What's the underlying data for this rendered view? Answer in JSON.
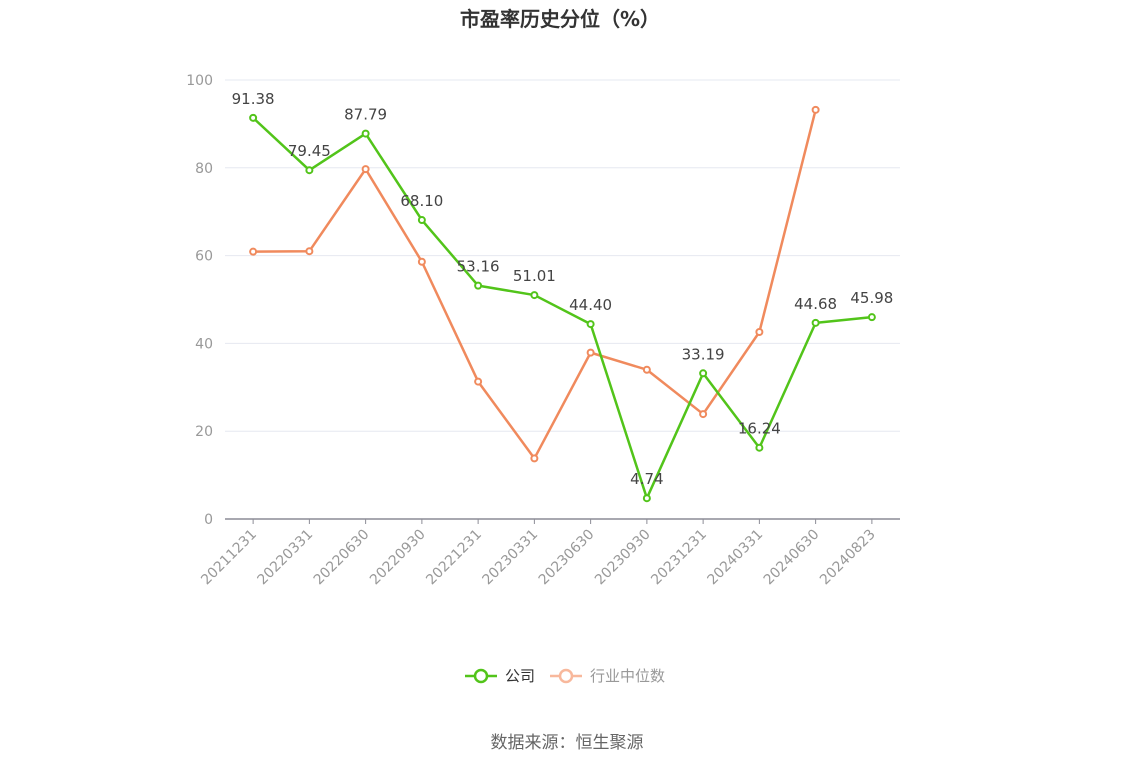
{
  "chart_data": {
    "type": "line",
    "title": "市盈率历史分位（%）",
    "categories": [
      "20211231",
      "20220331",
      "20220630",
      "20220930",
      "20221231",
      "20230331",
      "20230630",
      "20230930",
      "20231231",
      "20240331",
      "20240630",
      "20240823"
    ],
    "ylim": [
      0,
      100
    ],
    "yticks": [
      0,
      20,
      40,
      60,
      80,
      100
    ],
    "grid": true,
    "legend_position": "bottom",
    "series": [
      {
        "name": "公司",
        "color": "#52c41a",
        "values": [
          91.38,
          79.45,
          87.79,
          68.1,
          53.16,
          51.01,
          44.4,
          4.74,
          33.19,
          16.24,
          44.68,
          45.98
        ],
        "labels": [
          "91.38",
          "79.45",
          "87.79",
          "68.10",
          "53.16",
          "51.01",
          "44.40",
          "4.74",
          "33.19",
          "16.24",
          "44.68",
          "45.98"
        ]
      },
      {
        "name": "行业中位数",
        "color": "#f08a5d",
        "values": [
          60.9,
          61.0,
          79.7,
          58.6,
          31.3,
          13.8,
          37.9,
          34.0,
          23.9,
          42.6,
          93.2,
          null
        ]
      }
    ]
  },
  "source": "数据来源：恒生聚源"
}
